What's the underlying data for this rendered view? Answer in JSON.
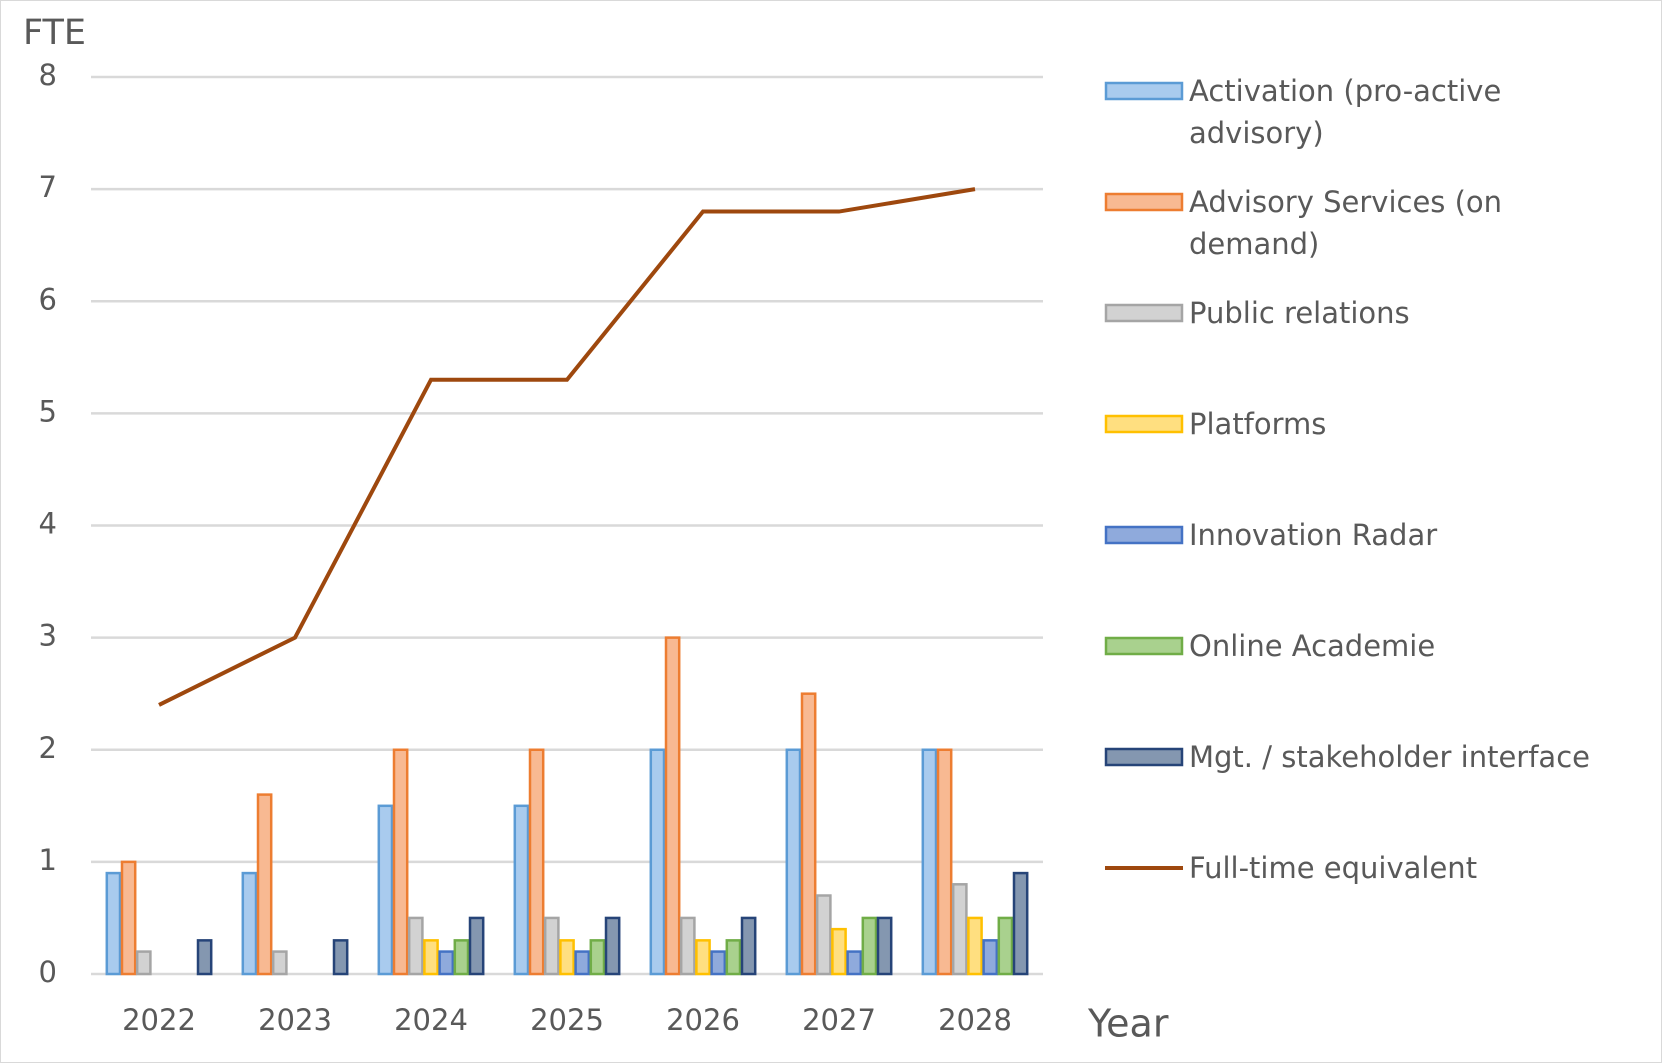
{
  "chart_data": {
    "type": "bar",
    "y_label": "FTE",
    "x_label": "Year",
    "categories": [
      "2022",
      "2023",
      "2024",
      "2025",
      "2026",
      "2027",
      "2028"
    ],
    "series": [
      {
        "name": "Activation (pro-active advisory)",
        "color": "#5b9bd5",
        "fill": "#a9cbee",
        "values": [
          0.9,
          0.9,
          1.5,
          1.5,
          2,
          2,
          2
        ]
      },
      {
        "name": "Advisory Services (on demand)",
        "color": "#ed7d31",
        "fill": "#f8b992",
        "values": [
          1,
          1.6,
          2,
          2,
          3,
          2.5,
          2
        ]
      },
      {
        "name": "Public relations",
        "color": "#a5a5a5",
        "fill": "#d2d2d2",
        "values": [
          0.2,
          0.2,
          0.5,
          0.5,
          0.5,
          0.7,
          0.8
        ]
      },
      {
        "name": "Platforms",
        "color": "#ffc000",
        "fill": "#ffdf80",
        "values": [
          0,
          0,
          0.3,
          0.3,
          0.3,
          0.4,
          0.5
        ]
      },
      {
        "name": "Innovation Radar",
        "color": "#4472c4",
        "fill": "#8faadc",
        "values": [
          0,
          0,
          0.2,
          0.2,
          0.2,
          0.2,
          0.3
        ]
      },
      {
        "name": "Online Academie",
        "color": "#70ad47",
        "fill": "#a9d18e",
        "values": [
          0,
          0,
          0.3,
          0.3,
          0.3,
          0.5,
          0.5
        ]
      },
      {
        "name": "Mgt. / stakeholder interface",
        "color": "#264478",
        "fill": "#8497b0",
        "values": [
          0.3,
          0.3,
          0.5,
          0.5,
          0.5,
          0.5,
          0.9
        ]
      },
      {
        "name": "Full-time equivalent",
        "type": "line",
        "color": "#9e480e",
        "values": [
          2.4,
          3,
          5.3,
          5.3,
          6.8,
          6.8,
          7
        ]
      }
    ],
    "ylim": [
      0,
      8
    ],
    "yticks": [
      0,
      1,
      2,
      3,
      4,
      5,
      6,
      7,
      8
    ],
    "grid": true
  }
}
